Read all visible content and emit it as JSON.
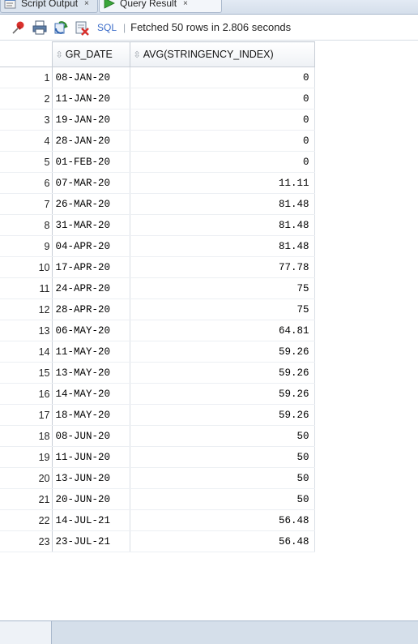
{
  "tabs": [
    {
      "label": "Script Output",
      "close": "×"
    },
    {
      "label": "Query Result",
      "close": "×"
    }
  ],
  "toolbar": {
    "icons": [
      "pin-icon",
      "print-icon",
      "refresh-icon",
      "export-icon"
    ],
    "sql_label": "SQL",
    "separator": "|",
    "status": "Fetched 50 rows in 2.806 seconds"
  },
  "grid": {
    "columns": [
      {
        "sort_icon": "⇳",
        "label": "GR_DATE"
      },
      {
        "sort_icon": "⇳",
        "label": "AVG(STRINGENCY_INDEX)"
      }
    ],
    "rows": [
      {
        "num": "1",
        "date": "08-JAN-20",
        "avg": "0"
      },
      {
        "num": "2",
        "date": "11-JAN-20",
        "avg": "0"
      },
      {
        "num": "3",
        "date": "19-JAN-20",
        "avg": "0"
      },
      {
        "num": "4",
        "date": "28-JAN-20",
        "avg": "0"
      },
      {
        "num": "5",
        "date": "01-FEB-20",
        "avg": "0"
      },
      {
        "num": "6",
        "date": "07-MAR-20",
        "avg": "11.11"
      },
      {
        "num": "7",
        "date": "26-MAR-20",
        "avg": "81.48"
      },
      {
        "num": "8",
        "date": "31-MAR-20",
        "avg": "81.48"
      },
      {
        "num": "9",
        "date": "04-APR-20",
        "avg": "81.48"
      },
      {
        "num": "10",
        "date": "17-APR-20",
        "avg": "77.78"
      },
      {
        "num": "11",
        "date": "24-APR-20",
        "avg": "75"
      },
      {
        "num": "12",
        "date": "28-APR-20",
        "avg": "75"
      },
      {
        "num": "13",
        "date": "06-MAY-20",
        "avg": "64.81"
      },
      {
        "num": "14",
        "date": "11-MAY-20",
        "avg": "59.26"
      },
      {
        "num": "15",
        "date": "13-MAY-20",
        "avg": "59.26"
      },
      {
        "num": "16",
        "date": "14-MAY-20",
        "avg": "59.26"
      },
      {
        "num": "17",
        "date": "18-MAY-20",
        "avg": "59.26"
      },
      {
        "num": "18",
        "date": "08-JUN-20",
        "avg": "50"
      },
      {
        "num": "19",
        "date": "11-JUN-20",
        "avg": "50"
      },
      {
        "num": "20",
        "date": "13-JUN-20",
        "avg": "50"
      },
      {
        "num": "21",
        "date": "20-JUN-20",
        "avg": "50"
      },
      {
        "num": "22",
        "date": "14-JUL-21",
        "avg": "56.48"
      },
      {
        "num": "23",
        "date": "23-JUL-21",
        "avg": "56.48"
      }
    ]
  },
  "colors": {
    "link": "#3b6cc9",
    "run_green": "#3aa63a",
    "pin_red": "#d9302c"
  }
}
